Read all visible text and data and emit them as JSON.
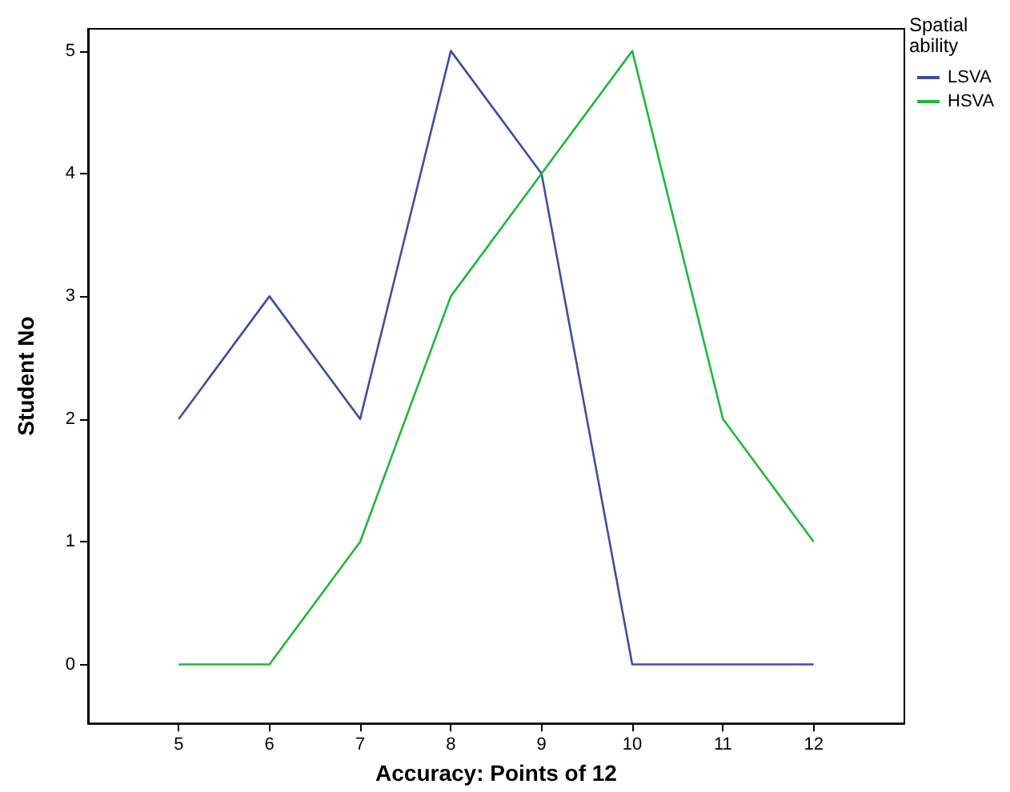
{
  "chart_data": {
    "type": "line",
    "xlabel": "Accuracy: Points of 12",
    "ylabel": "Student No",
    "legend_title": "Spatial ability",
    "x": [
      5,
      6,
      7,
      8,
      9,
      10,
      11,
      12
    ],
    "xlim": [
      4,
      13
    ],
    "xticks": [
      5,
      6,
      7,
      8,
      9,
      10,
      11,
      12
    ],
    "ylim": [
      -0.48,
      5.18
    ],
    "yticks": [
      0,
      1,
      2,
      3,
      4,
      5
    ],
    "series": [
      {
        "name": "LSVA",
        "color": "#3e4ea0",
        "values": [
          2,
          3,
          2,
          5,
          4,
          0,
          0,
          0
        ]
      },
      {
        "name": "HSVA",
        "color": "#1fb83a",
        "values": [
          0,
          0,
          1,
          3,
          4,
          5,
          2,
          1
        ]
      }
    ],
    "grid": false,
    "legend": "top right",
    "marker": "none",
    "line_style": "solid"
  }
}
